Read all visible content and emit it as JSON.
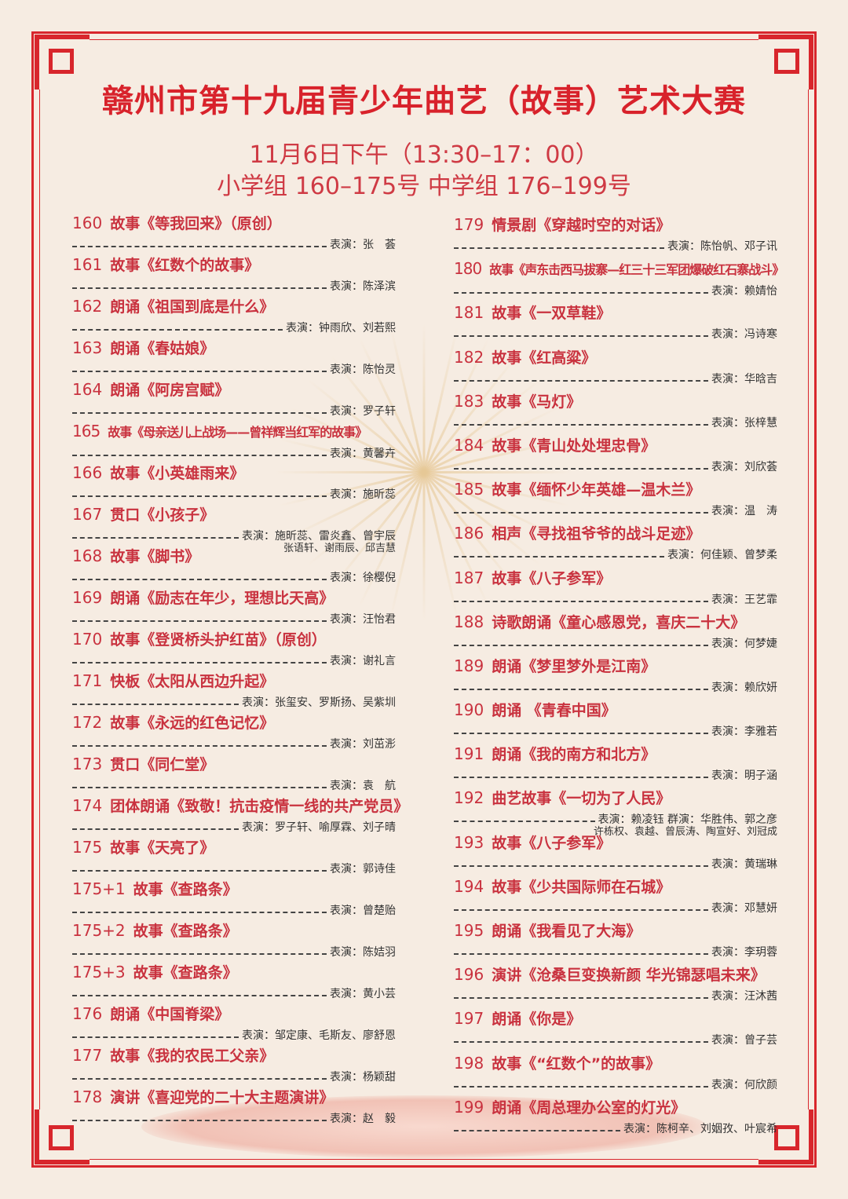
{
  "header": {
    "title": "赣州市第十九届青少年曲艺（故事）艺术大赛",
    "time": "11月6日下午（13:30–17：00）",
    "groups": "小学组 160–175号  中学组 176–199号"
  },
  "colors": {
    "accent": "#d8262c",
    "title_text": "#c9323f",
    "background": "#f6ece2"
  },
  "left_entries": [
    {
      "num": "160",
      "title": "故事《等我回来》（原创）",
      "performer": "表演：张　荟"
    },
    {
      "num": "161",
      "title": "故事《红数个的故事》",
      "performer": "表演：陈泽滨"
    },
    {
      "num": "162",
      "title": "朗诵《祖国到底是什么》",
      "performer": "表演：钟雨欣、刘若熙"
    },
    {
      "num": "163",
      "title": "朗诵《春姑娘》",
      "performer": "表演：陈怡灵"
    },
    {
      "num": "164",
      "title": "朗诵《阿房宫赋》",
      "performer": "表演：罗子轩"
    },
    {
      "num": "165",
      "title": "故事《母亲送儿上战场——曾祥辉当红军的故事》",
      "performer": "表演：黄馨卉"
    },
    {
      "num": "166",
      "title": "故事《小英雄雨来》",
      "performer": "表演：施昕蕊"
    },
    {
      "num": "167",
      "title": "贯口《小孩子》",
      "performer": "表演：施昕蕊、雷炎鑫、曾宇辰",
      "performer2": "张语轩、谢雨辰、邱吉慧"
    },
    {
      "num": "168",
      "title": "故事《脚书》",
      "performer": "表演：徐樱倪"
    },
    {
      "num": "169",
      "title": "朗诵《励志在年少，理想比天高》",
      "performer": "表演：汪怡君"
    },
    {
      "num": "170",
      "title": "故事《登贤桥头护红苗》（原创）",
      "performer": "表演：谢礼言"
    },
    {
      "num": "171",
      "title": "快板《太阳从西边升起》",
      "performer": "表演：张玺安、罗斯扬、吴紫圳"
    },
    {
      "num": "172",
      "title": "故事《永远的红色记忆》",
      "performer": "表演：刘茁浵"
    },
    {
      "num": "173",
      "title": "贯口《同仁堂》",
      "performer": "表演：袁　航"
    },
    {
      "num": "174",
      "title": "团体朗诵《致敬！抗击疫情一线的共产党员》",
      "performer": "表演：罗子轩、喻厚霖、刘子晴"
    },
    {
      "num": "175",
      "title": "故事《天亮了》",
      "performer": "表演：郭诗佳"
    },
    {
      "num": "175+1",
      "title": "故事《查路条》",
      "performer": "表演：曾楚贻"
    },
    {
      "num": "175+2",
      "title": "故事《查路条》",
      "performer": "表演：陈姞羽"
    },
    {
      "num": "175+3",
      "title": "故事《查路条》",
      "performer": "表演：黄小芸"
    },
    {
      "num": "176",
      "title": "朗诵《中国脊梁》",
      "performer": "表演：邹定康、毛斯友、廖舒恩"
    },
    {
      "num": "177",
      "title": "故事《我的农民工父亲》",
      "performer": "表演：杨颖甜"
    },
    {
      "num": "178",
      "title": "演讲《喜迎党的二十大主题演讲》",
      "performer": "表演：赵　毅"
    }
  ],
  "right_entries": [
    {
      "num": "179",
      "title": "情景剧《穿越时空的对话》",
      "performer": "表演：陈怡帆、邓子讯"
    },
    {
      "num": "180",
      "title": "故事《声东击西马拔寨—红三十三军团爆破红石寨战斗》",
      "performer": "表演：赖婧怡"
    },
    {
      "num": "181",
      "title": "故事《一双草鞋》",
      "performer": "表演：冯诗寒"
    },
    {
      "num": "182",
      "title": "故事《红高粱》",
      "performer": "表演：华晗吉"
    },
    {
      "num": "183",
      "title": "故事《马灯》",
      "performer": "表演：张梓慧"
    },
    {
      "num": "184",
      "title": "故事《青山处处埋忠骨》",
      "performer": "表演：刘欣荟"
    },
    {
      "num": "185",
      "title": "故事《缅怀少年英雄—温木兰》",
      "performer": "表演：温　涛"
    },
    {
      "num": "186",
      "title": "相声《寻找祖爷爷的战斗足迹》",
      "performer": "表演：何佳颖、曾梦柔"
    },
    {
      "num": "187",
      "title": "故事《八子参军》",
      "performer": "表演：王艺霏"
    },
    {
      "num": "188",
      "title": "诗歌朗诵《童心感恩党，喜庆二十大》",
      "performer": "表演：何梦婕"
    },
    {
      "num": "189",
      "title": "朗诵《梦里梦外是江南》",
      "performer": "表演：赖欣妍"
    },
    {
      "num": "190",
      "title": "朗诵 《青春中国》",
      "performer": "表演：李雅若"
    },
    {
      "num": "191",
      "title": "朗诵《我的南方和北方》",
      "performer": "表演：明子涵"
    },
    {
      "num": "192",
      "title": "曲艺故事《一切为了人民》",
      "performer": "表演：赖凌钰 群演：华胜伟、郭之彦",
      "performer2": "许栋权、袁越、曾辰涛、陶宣好、刘冠成"
    },
    {
      "num": "193",
      "title": "故事《八子参军》",
      "performer": "表演：黄瑞琳"
    },
    {
      "num": "194",
      "title": "故事《少共国际师在石城》",
      "performer": "表演：邓慧妍"
    },
    {
      "num": "195",
      "title": "朗诵《我看见了大海》",
      "performer": "表演：李玥蓉"
    },
    {
      "num": "196",
      "title": "演讲《沧桑巨变换新颜 华光锦瑟唱未来》",
      "performer": "表演：汪沐茜"
    },
    {
      "num": "197",
      "title": "朗诵《你是》",
      "performer": "表演：曾子芸"
    },
    {
      "num": "198",
      "title": "故事《“红数个”的故事》",
      "performer": "表演：何欣颜"
    },
    {
      "num": "199",
      "title": "朗诵《周总理办公室的灯光》",
      "performer": "表演：陈柯辛、刘姻孜、叶宸希"
    }
  ]
}
